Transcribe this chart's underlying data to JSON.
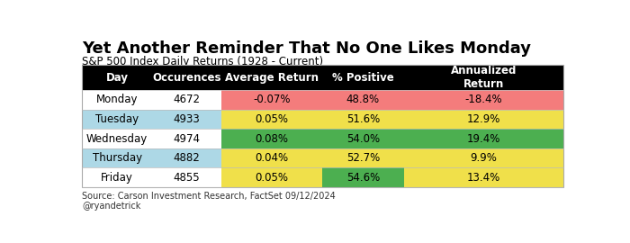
{
  "title": "Yet Another Reminder That No One Likes Monday",
  "subtitle": "S&P 500 Index Daily Returns (1928 - Current)",
  "source": "Source: Carson Investment Research, FactSet 09/12/2024\n@ryandetrick",
  "header": [
    "Day",
    "Occurences",
    "Average Return",
    "% Positive",
    "Annualized\nReturn"
  ],
  "rows": [
    [
      "Monday",
      "4672",
      "-0.07%",
      "48.8%",
      "-18.4%"
    ],
    [
      "Tuesday",
      "4933",
      "0.05%",
      "51.6%",
      "12.9%"
    ],
    [
      "Wednesday",
      "4974",
      "0.08%",
      "54.0%",
      "19.4%"
    ],
    [
      "Thursday",
      "4882",
      "0.04%",
      "52.7%",
      "9.9%"
    ],
    [
      "Friday",
      "4855",
      "0.05%",
      "54.6%",
      "13.4%"
    ]
  ],
  "row_bg_colors": [
    "#ffffff",
    "#add8e6",
    "#ffffff",
    "#add8e6",
    "#ffffff"
  ],
  "cell_colors": {
    "avg_return": [
      "#f47c7c",
      "#f0e04a",
      "#4caf50",
      "#f0e04a",
      "#f0e04a"
    ],
    "pct_positive": [
      "#f47c7c",
      "#f0e04a",
      "#4caf50",
      "#f0e04a",
      "#4caf50"
    ],
    "ann_return": [
      "#f47c7c",
      "#f0e04a",
      "#4caf50",
      "#f0e04a",
      "#f0e04a"
    ]
  },
  "header_bg": "#000000",
  "header_fg": "#ffffff",
  "title_fontsize": 13,
  "subtitle_fontsize": 8.5,
  "header_fontsize": 8.5,
  "cell_fontsize": 8.5,
  "source_fontsize": 7
}
